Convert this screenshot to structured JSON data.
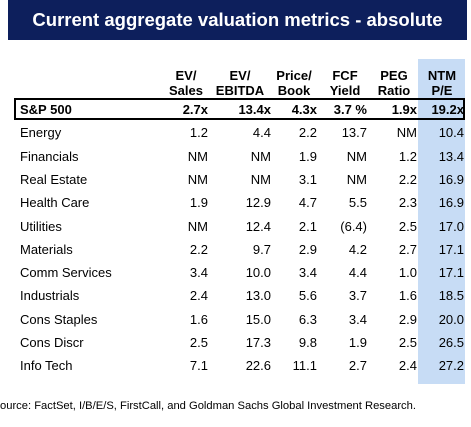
{
  "title": "Current aggregate valuation metrics - absolute",
  "columns": [
    {
      "line1": "EV/",
      "line2": "Sales"
    },
    {
      "line1": "EV/",
      "line2": "EBITDA"
    },
    {
      "line1": "Price/",
      "line2": "Book"
    },
    {
      "line1": "FCF",
      "line2": "Yield"
    },
    {
      "line1": "PEG",
      "line2": "Ratio"
    },
    {
      "line1": "NTM",
      "line2": "P/E"
    }
  ],
  "rows": [
    {
      "label": "S&P 500",
      "values": [
        "2.7x",
        "13.4x",
        "4.3x",
        "3.7 %",
        "1.9x",
        "19.2x"
      ],
      "bold": true
    },
    {
      "label": "Energy",
      "values": [
        "1.2",
        "4.4",
        "2.2",
        "13.7",
        "NM",
        "10.4"
      ]
    },
    {
      "label": "Financials",
      "values": [
        "NM",
        "NM",
        "1.9",
        "NM",
        "1.2",
        "13.4"
      ]
    },
    {
      "label": "Real Estate",
      "values": [
        "NM",
        "NM",
        "3.1",
        "NM",
        "2.2",
        "16.9"
      ]
    },
    {
      "label": "Health Care",
      "values": [
        "1.9",
        "12.9",
        "4.7",
        "5.5",
        "2.3",
        "16.9"
      ]
    },
    {
      "label": "Utilities",
      "values": [
        "NM",
        "12.4",
        "2.1",
        "(6.4)",
        "2.5",
        "17.0"
      ]
    },
    {
      "label": "Materials",
      "values": [
        "2.2",
        "9.7",
        "2.9",
        "4.2",
        "2.7",
        "17.1"
      ]
    },
    {
      "label": "Comm Services",
      "values": [
        "3.4",
        "10.0",
        "3.4",
        "4.4",
        "1.0",
        "17.1"
      ]
    },
    {
      "label": "Industrials",
      "values": [
        "2.4",
        "13.0",
        "5.6",
        "3.7",
        "1.6",
        "18.5"
      ]
    },
    {
      "label": "Cons Staples",
      "values": [
        "1.6",
        "15.0",
        "6.3",
        "3.4",
        "2.9",
        "20.0"
      ]
    },
    {
      "label": "Cons Discr",
      "values": [
        "2.5",
        "17.3",
        "9.8",
        "1.9",
        "2.5",
        "26.5"
      ]
    },
    {
      "label": "Info Tech",
      "values": [
        "7.1",
        "22.6",
        "11.1",
        "2.7",
        "2.4",
        "27.2"
      ]
    }
  ],
  "source": "ource: FactSet, I/B/E/S, FirstCall, and Goldman Sachs Global Investment Research.",
  "colors": {
    "banner": "#0d1f5c",
    "highlight": "#c7dcf5"
  }
}
